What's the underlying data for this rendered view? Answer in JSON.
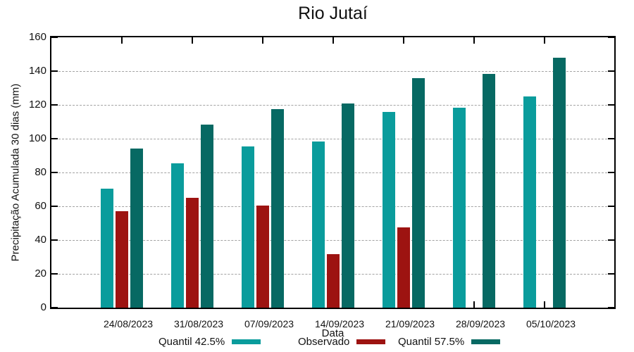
{
  "title": "Rio Jutaí",
  "chart_data": {
    "type": "bar",
    "title": "Rio Jutaí",
    "xlabel": "Data",
    "ylabel": "Precipitação Acumulada 30 dias (mm)",
    "ylim": [
      0,
      160
    ],
    "y_ticks": [
      0,
      20,
      40,
      60,
      80,
      100,
      120,
      140,
      160
    ],
    "grid": true,
    "legend_position": "bottom",
    "categories": [
      "24/08/2023",
      "31/08/2023",
      "07/09/2023",
      "14/09/2023",
      "21/09/2023",
      "28/09/2023",
      "05/10/2023"
    ],
    "series": [
      {
        "name": "Quantil 42.5%",
        "color": "#0a9c9c",
        "values": [
          70.5,
          85.5,
          95.5,
          98.5,
          116,
          118.5,
          125
        ]
      },
      {
        "name": "Observado",
        "color": "#9d1311",
        "values": [
          57,
          65,
          60.5,
          31.5,
          47.5,
          null,
          null
        ]
      },
      {
        "name": "Quantil 57.5%",
        "color": "#076963",
        "values": [
          94,
          108.5,
          117.5,
          121,
          136,
          138.5,
          148
        ]
      }
    ]
  }
}
